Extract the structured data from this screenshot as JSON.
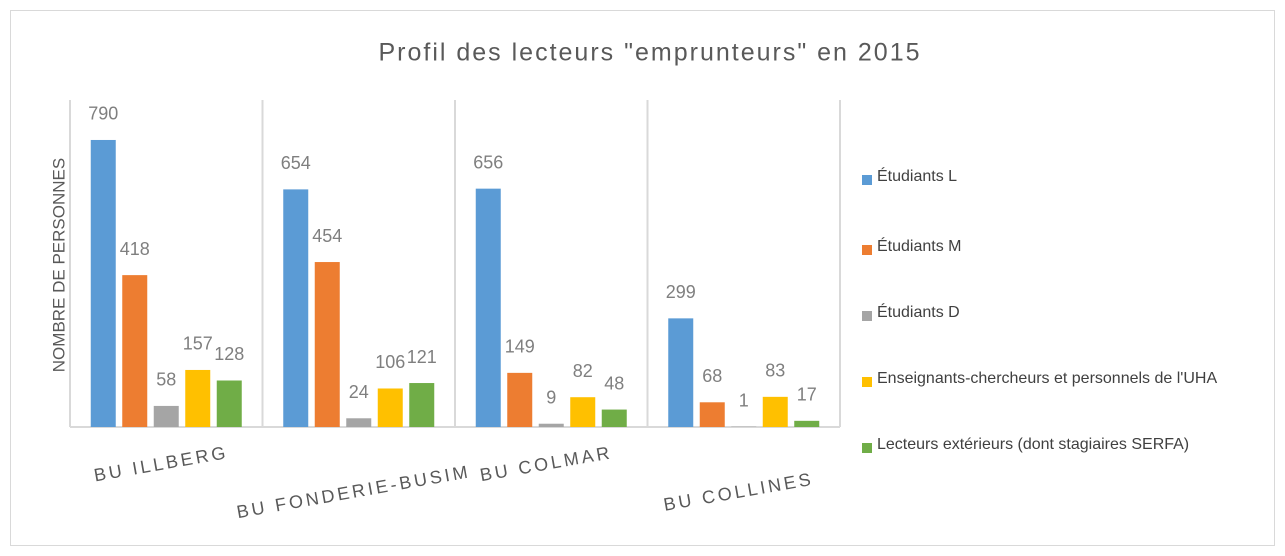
{
  "chart_data": {
    "type": "bar",
    "title": "Profil des lecteurs \"emprunteurs\" en 2015",
    "y_axis_label": "NOMBRE DE PERSONNES",
    "categories": [
      "BU ILLBERG",
      "BU FONDERIE-BUSIM",
      "BU COLMAR",
      "BU COLLINES"
    ],
    "series": [
      {
        "name": "Étudiants L",
        "color": "#5b9bd5",
        "values": [
          790,
          654,
          656,
          299
        ]
      },
      {
        "name": "Étudiants M",
        "color": "#ed7d31",
        "values": [
          418,
          454,
          149,
          68
        ]
      },
      {
        "name": "Étudiants D",
        "color": "#a5a5a5",
        "values": [
          58,
          24,
          9,
          1
        ]
      },
      {
        "name": "Enseignants-chercheurs et personnels de l'UHA",
        "color": "#ffc000",
        "values": [
          157,
          106,
          82,
          83
        ]
      },
      {
        "name": "Lecteurs extérieurs (dont stagiaires SERFA)",
        "color": "#70ad47",
        "values": [
          128,
          121,
          48,
          17
        ]
      }
    ],
    "ylim": [
      0,
      900
    ],
    "legend": "right"
  }
}
